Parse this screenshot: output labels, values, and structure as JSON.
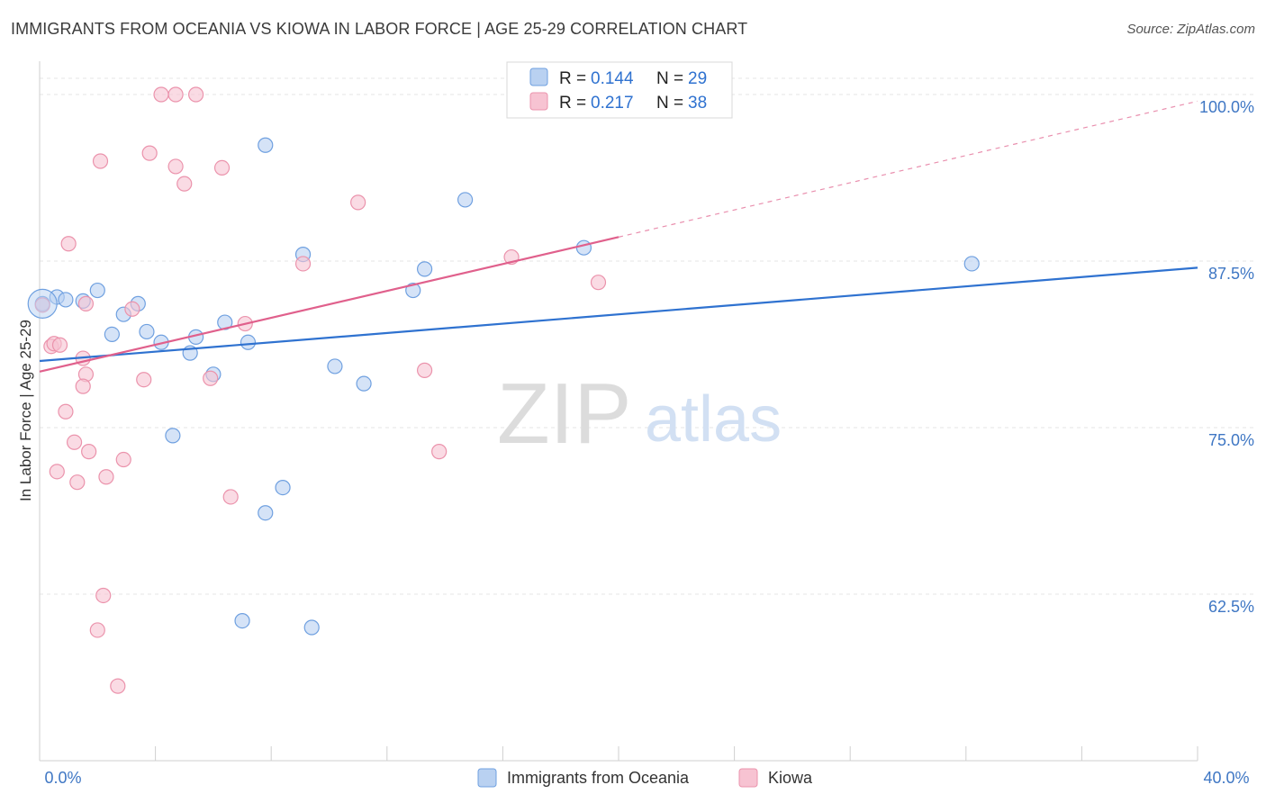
{
  "chart_data": {
    "type": "scatter",
    "title": "IMMIGRANTS FROM OCEANIA VS KIOWA IN LABOR FORCE | AGE 25-29 CORRELATION CHART",
    "source": "Source: ZipAtlas.com",
    "ylabel": "In Labor Force | Age 25-29",
    "xlabel": "",
    "xlim": [
      0,
      40
    ],
    "ylim": [
      50.0,
      102.5
    ],
    "x_tick_labels": {
      "min": "0.0%",
      "max": "40.0%"
    },
    "y_ticks": [
      {
        "value": 100.0,
        "label": "100.0%"
      },
      {
        "value": 87.5,
        "label": "87.5%"
      },
      {
        "value": 75.0,
        "label": "75.0%"
      },
      {
        "value": 62.5,
        "label": "62.5%"
      }
    ],
    "watermark": {
      "zip": "ZIP",
      "atlas": "atlas"
    },
    "legend": [
      {
        "name": "Immigrants from Oceania",
        "r_label": "R =",
        "r_value": "0.144",
        "n_label": "N =",
        "n_value": "29"
      },
      {
        "name": "Kiowa",
        "r_label": "R =",
        "r_value": "0.217",
        "n_label": "N =",
        "n_value": "38"
      }
    ],
    "series": [
      {
        "name": "Immigrants from Oceania",
        "color": "#6fa0e0",
        "fill": "#b9d1f1",
        "trend_color": "#2f72d0",
        "trend": {
          "x0": 0,
          "y0": 80.0,
          "x1": 40,
          "y1": 87.0
        },
        "points": [
          {
            "x": 0.1,
            "y": 84.3
          },
          {
            "x": 0.6,
            "y": 84.8
          },
          {
            "x": 1.5,
            "y": 84.5
          },
          {
            "x": 2.0,
            "y": 85.3
          },
          {
            "x": 2.5,
            "y": 82.0
          },
          {
            "x": 2.9,
            "y": 83.5
          },
          {
            "x": 3.4,
            "y": 84.3
          },
          {
            "x": 3.7,
            "y": 82.2
          },
          {
            "x": 4.2,
            "y": 81.4
          },
          {
            "x": 4.6,
            "y": 74.4
          },
          {
            "x": 5.2,
            "y": 80.6
          },
          {
            "x": 5.4,
            "y": 81.8
          },
          {
            "x": 6.0,
            "y": 79.0
          },
          {
            "x": 6.4,
            "y": 82.9
          },
          {
            "x": 7.0,
            "y": 60.5
          },
          {
            "x": 7.2,
            "y": 81.4
          },
          {
            "x": 7.8,
            "y": 96.2
          },
          {
            "x": 7.8,
            "y": 68.6
          },
          {
            "x": 8.4,
            "y": 70.5
          },
          {
            "x": 9.1,
            "y": 88.0
          },
          {
            "x": 9.4,
            "y": 60.0
          },
          {
            "x": 10.2,
            "y": 79.6
          },
          {
            "x": 11.2,
            "y": 78.3
          },
          {
            "x": 12.9,
            "y": 85.3
          },
          {
            "x": 13.3,
            "y": 86.9
          },
          {
            "x": 14.7,
            "y": 92.1
          },
          {
            "x": 18.8,
            "y": 88.5
          },
          {
            "x": 32.2,
            "y": 87.3
          },
          {
            "x": 0.9,
            "y": 84.6
          }
        ]
      },
      {
        "name": "Kiowa",
        "color": "#eb93ac",
        "fill": "#f7c3d2",
        "trend_color": "#e0608c",
        "trend": {
          "x0": 0,
          "y0": 79.2,
          "x1": 20,
          "y1": 89.3
        },
        "trend_dashed": {
          "x0": 20,
          "y0": 89.3,
          "x1": 40,
          "y1": 99.5
        },
        "points": [
          {
            "x": 0.1,
            "y": 84.2
          },
          {
            "x": 0.4,
            "y": 81.1
          },
          {
            "x": 0.5,
            "y": 81.3
          },
          {
            "x": 0.7,
            "y": 81.2
          },
          {
            "x": 0.6,
            "y": 71.7
          },
          {
            "x": 0.9,
            "y": 76.2
          },
          {
            "x": 1.0,
            "y": 88.8
          },
          {
            "x": 1.2,
            "y": 73.9
          },
          {
            "x": 1.3,
            "y": 70.9
          },
          {
            "x": 1.5,
            "y": 80.2
          },
          {
            "x": 1.6,
            "y": 79.0
          },
          {
            "x": 1.6,
            "y": 84.3
          },
          {
            "x": 1.7,
            "y": 73.2
          },
          {
            "x": 1.5,
            "y": 78.1
          },
          {
            "x": 2.0,
            "y": 59.8
          },
          {
            "x": 2.1,
            "y": 95.0
          },
          {
            "x": 2.2,
            "y": 62.4
          },
          {
            "x": 2.3,
            "y": 71.3
          },
          {
            "x": 2.7,
            "y": 55.6
          },
          {
            "x": 2.9,
            "y": 72.6
          },
          {
            "x": 3.2,
            "y": 83.9
          },
          {
            "x": 3.6,
            "y": 78.6
          },
          {
            "x": 3.8,
            "y": 95.6
          },
          {
            "x": 4.2,
            "y": 100.0
          },
          {
            "x": 4.7,
            "y": 94.6
          },
          {
            "x": 4.7,
            "y": 100.0
          },
          {
            "x": 5.0,
            "y": 93.3
          },
          {
            "x": 5.4,
            "y": 100.0
          },
          {
            "x": 5.9,
            "y": 78.7
          },
          {
            "x": 6.3,
            "y": 94.5
          },
          {
            "x": 6.6,
            "y": 69.8
          },
          {
            "x": 7.1,
            "y": 82.8
          },
          {
            "x": 9.1,
            "y": 87.3
          },
          {
            "x": 11.0,
            "y": 91.9
          },
          {
            "x": 13.3,
            "y": 79.3
          },
          {
            "x": 13.8,
            "y": 73.2
          },
          {
            "x": 16.3,
            "y": 87.8
          },
          {
            "x": 19.3,
            "y": 85.9
          }
        ]
      }
    ]
  }
}
